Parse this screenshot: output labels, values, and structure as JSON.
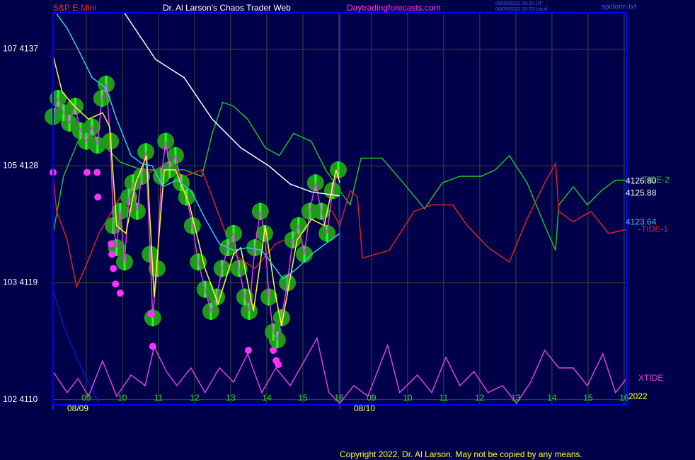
{
  "chart_data": {
    "type": "line",
    "symbol": "S&P E-Mini",
    "title": "Dr. Al Larson's Chaos Trader Web",
    "site": "Daytradingforecasts.com",
    "timestamps": [
      "08/09/2022 20:20 UT",
      "08/09/2022 15:20 Local"
    ],
    "file": "spcform.txt",
    "copyright": "Copyright 2022, Dr. Al Larson. May not be copied by any means.",
    "year": "2022",
    "xlim": [
      8.08,
      23.96
    ],
    "ylim": [
      4109.6,
      4139.8
    ],
    "y2lim": [
      0,
      100
    ],
    "grid": true,
    "xticks": [
      {
        "value": 9,
        "label": "09"
      },
      10,
      11,
      12,
      13,
      14,
      15,
      16,
      {
        "value": 16.9,
        "label": "09"
      },
      {
        "value": 17.9,
        "label": "10"
      },
      {
        "value": 18.9,
        "label": "11"
      },
      {
        "value": 19.9,
        "label": "12"
      },
      {
        "value": 20.9,
        "label": "13"
      },
      {
        "value": 21.9,
        "label": "14"
      },
      {
        "value": 22.9,
        "label": "15"
      },
      {
        "value": 23.9,
        "label": "16"
      }
    ],
    "yticks": [
      {
        "value": 4137,
        "label": "107  4137"
      },
      {
        "value": 4128,
        "label": "105  4128"
      },
      {
        "value": 4119,
        "label": "103  4119"
      },
      {
        "value": 4110,
        "label": "102  4110"
      }
    ],
    "date_labels": [
      {
        "value": 8.08,
        "label": "08/09"
      },
      {
        "value": 16.02,
        "label": "08/10"
      }
    ],
    "price_labels": [
      {
        "value": 4126.8,
        "label": "4126.80",
        "color": "#ffffff"
      },
      {
        "value": 4125.88,
        "label": "4125.88",
        "color": "#ffffff"
      },
      {
        "value": 4123.64,
        "label": "4123.64",
        "color": "#40c0ff"
      }
    ],
    "series": [
      {
        "name": "TIDE-2",
        "color": "#20c020",
        "type": "line",
        "x": [
          8.08,
          8.37,
          8.77,
          9.16,
          9.55,
          9.94,
          10.53,
          11.12,
          11.71,
          12.2,
          12.49,
          12.78,
          13.08,
          13.47,
          13.96,
          14.35,
          14.74,
          15.23,
          15.63,
          16.02,
          16.31,
          16.61,
          17.19,
          17.78,
          18.37,
          18.86,
          19.35,
          19.94,
          20.33,
          20.72,
          21.21,
          21.7,
          22.0,
          22.09,
          22.49,
          22.88,
          23.27,
          23.66,
          23.96
        ],
        "values": [
          4122.8,
          4127.2,
          4129.9,
          4130.5,
          4129.4,
          4128.3,
          4127.7,
          4127.7,
          4127.7,
          4127.2,
          4130.5,
          4132.9,
          4132.6,
          4131.6,
          4129.4,
          4128.8,
          4130.5,
          4129.9,
          4127.7,
          4126.1,
          4125.0,
          4128.6,
          4128.6,
          4126.7,
          4124.7,
          4126.7,
          4127.2,
          4127.2,
          4127.7,
          4128.8,
          4126.7,
          4123.4,
          4121.5,
          4125.0,
          4126.4,
          4125.0,
          4126.1,
          4126.9,
          4126.9
        ]
      },
      {
        "name": "-TIDE-1",
        "color": "#e02020",
        "type": "line",
        "x": [
          8.08,
          8.18,
          8.47,
          8.73,
          8.96,
          9.35,
          9.94,
          10.53,
          11.12,
          11.71,
          12.2,
          12.49,
          13.08,
          13.67,
          14.25,
          14.74,
          15.23,
          15.82,
          16.02,
          16.31,
          16.51,
          16.65,
          17.39,
          18.08,
          18.57,
          19.15,
          19.55,
          20.14,
          20.72,
          21.21,
          21.7,
          22.0,
          22.09,
          22.49,
          22.98,
          23.47,
          23.96
        ],
        "values": [
          4127.2,
          4124.5,
          4122.3,
          4118.7,
          4120.1,
          4122.8,
          4125.6,
          4127.2,
          4128.0,
          4127.2,
          4127.7,
          4125.6,
          4121.2,
          4120.1,
          4122.0,
          4122.6,
          4125.0,
          4124.5,
          4123.4,
          4126.1,
          4125.6,
          4120.9,
          4121.5,
          4124.5,
          4125.0,
          4125.0,
          4123.4,
          4121.7,
          4120.6,
          4123.9,
          4126.7,
          4128.2,
          4124.5,
          4123.7,
          4124.5,
          4122.8,
          4123.1
        ]
      },
      {
        "color": "#1010d0",
        "type": "line",
        "x": [
          8.08,
          8.37,
          8.77,
          9.16,
          9.35
        ],
        "values": [
          4118.5,
          4115.7,
          4113.0,
          4110.8,
          4109.7
        ]
      },
      {
        "name": "XTIDE",
        "color": "#e040e0",
        "type": "line",
        "axis": "y2",
        "x": [
          8.08,
          8.47,
          8.77,
          9.06,
          9.45,
          9.84,
          10.24,
          10.63,
          10.88,
          11.22,
          11.51,
          11.9,
          12.29,
          12.69,
          13.08,
          13.47,
          13.86,
          14.25,
          14.65,
          15.04,
          15.39,
          15.72,
          16.02,
          16.41,
          16.8,
          17.35,
          17.68,
          18.17,
          18.57,
          18.96,
          19.35,
          19.74,
          20.13,
          20.53,
          20.92,
          21.31,
          21.7,
          22.09,
          22.49,
          22.88,
          23.31,
          23.66,
          23.96
        ],
        "values": [
          8.5,
          3.1,
          6.7,
          2.2,
          11.2,
          2.2,
          7.6,
          4.9,
          14.8,
          8.5,
          4.9,
          9.4,
          3.1,
          9.4,
          5.8,
          13.0,
          3.1,
          9.4,
          4.9,
          11.2,
          17.0,
          3.1,
          0.4,
          4.9,
          2.2,
          15.2,
          3.1,
          7.6,
          3.1,
          12.1,
          4.9,
          8.5,
          3.1,
          4.9,
          0.4,
          5.8,
          13.9,
          9.4,
          9.4,
          4.9,
          13.0,
          3.1,
          6.7
        ]
      },
      {
        "color": "#20ff20",
        "type": "bubble-line",
        "line_color": "#e040e0",
        "x": [
          8.08,
          8.22,
          8.37,
          8.53,
          8.69,
          8.84,
          9.0,
          9.16,
          9.31,
          9.43,
          9.55,
          9.67,
          9.75,
          9.84,
          9.94,
          10.06,
          10.18,
          10.29,
          10.41,
          10.53,
          10.65,
          10.77,
          10.84,
          10.96,
          11.08,
          11.2,
          11.31,
          11.47,
          11.63,
          11.78,
          11.94,
          12.1,
          12.29,
          12.45,
          12.61,
          12.76,
          12.92,
          13.08,
          13.23,
          13.39,
          13.51,
          13.67,
          13.82,
          13.94,
          14.06,
          14.18,
          14.29,
          14.41,
          14.57,
          14.72,
          14.88,
          15.04,
          15.19,
          15.35,
          15.51,
          15.67,
          15.82,
          15.98
        ],
        "values": [
          4131.8,
          4133.2,
          4132.1,
          4131.3,
          4132.6,
          4130.7,
          4129.9,
          4131.0,
          4129.6,
          4133.2,
          4134.3,
          4129.9,
          4123.4,
          4121.7,
          4124.5,
          4120.6,
          4125.6,
          4126.7,
          4124.5,
          4127.2,
          4129.1,
          4121.2,
          4116.3,
          4120.1,
          4127.2,
          4129.9,
          4127.7,
          4128.8,
          4126.7,
          4125.6,
          4123.4,
          4120.6,
          4118.5,
          4116.8,
          4117.9,
          4120.1,
          4121.7,
          4122.8,
          4120.1,
          4117.9,
          4116.8,
          4121.7,
          4124.5,
          4122.8,
          4117.9,
          4115.2,
          4114.6,
          4116.3,
          4119.0,
          4122.3,
          4123.4,
          4121.2,
          4124.5,
          4126.7,
          4124.5,
          4122.8,
          4126.1,
          4127.7
        ]
      },
      {
        "color": "#ffff20",
        "type": "line",
        "x": [
          8.08,
          8.33,
          8.67,
          9.06,
          9.45,
          9.65,
          9.84,
          10.1,
          10.37,
          10.67,
          10.88,
          11.16,
          11.47,
          11.86,
          12.29,
          12.65,
          13.08,
          13.28,
          13.63,
          13.96,
          14.25,
          14.41,
          14.84,
          15.24,
          15.59,
          15.92,
          16.02
        ],
        "values": [
          4136.5,
          4133.7,
          4132.6,
          4131.6,
          4132.1,
          4131.0,
          4123.4,
          4122.8,
          4126.7,
          4128.8,
          4117.9,
          4127.7,
          4127.7,
          4125.0,
          4120.1,
          4117.4,
          4121.2,
          4121.7,
          4116.8,
          4123.4,
          4117.9,
          4115.7,
          4122.3,
          4123.9,
          4123.4,
          4127.7,
          4126.7
        ]
      },
      {
        "color": "#30d0e0",
        "type": "line",
        "x": [
          8.18,
          8.47,
          8.77,
          9.16,
          9.55,
          9.84,
          10.24,
          10.53,
          10.83,
          11.12,
          11.51,
          11.9,
          12.3,
          12.69,
          13.08,
          13.47,
          13.86,
          14.16,
          14.45,
          14.84,
          15.24,
          15.63,
          16.02
        ],
        "values": [
          4139.7,
          4138.6,
          4137.0,
          4134.8,
          4134.0,
          4131.6,
          4128.8,
          4128.2,
          4128.0,
          4126.4,
          4126.9,
          4126.1,
          4123.9,
          4122.0,
          4121.5,
          4121.7,
          4121.5,
          4120.4,
          4119.3,
          4120.1,
          4121.2,
          4122.0,
          4122.8
        ]
      },
      {
        "color": "#ffffff",
        "type": "line",
        "x": [
          10.04,
          10.92,
          11.71,
          12.49,
          13.28,
          14.06,
          14.65,
          15.24,
          16.02
        ],
        "values": [
          4139.85,
          4136.2,
          4134.8,
          4131.6,
          4129.4,
          4128.0,
          4126.6,
          4126.0,
          4125.7
        ]
      },
      {
        "color": "#ff30ff",
        "type": "scatter",
        "x": [
          8.08,
          9.02,
          9.3,
          9.32,
          9.69,
          9.71,
          9.75,
          9.81,
          9.94,
          10.8,
          10.84,
          13.49,
          14.18,
          14.26,
          14.32
        ],
        "values": [
          4127.5,
          4127.5,
          4127.5,
          4125.6,
          4122.0,
          4121.2,
          4120.1,
          4118.9,
          4118.2,
          4116.6,
          4114.1,
          4113.8,
          4113.8,
          4113.0,
          4112.7
        ]
      }
    ]
  }
}
